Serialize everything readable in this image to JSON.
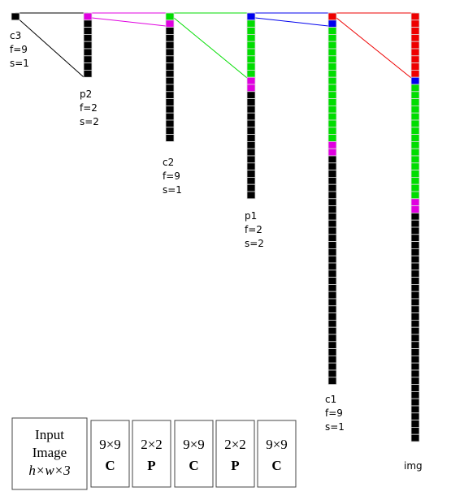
{
  "layers": [
    {
      "name": "c3",
      "lines": [
        "f=9",
        "s=1"
      ]
    },
    {
      "name": "p2",
      "lines": [
        "f=2",
        "s=2"
      ]
    },
    {
      "name": "c2",
      "lines": [
        "f=9",
        "s=1"
      ]
    },
    {
      "name": "p1",
      "lines": [
        "f=2",
        "s=2"
      ]
    },
    {
      "name": "c1",
      "lines": [
        "f=9",
        "s=1"
      ]
    },
    {
      "name": "img",
      "lines": []
    }
  ],
  "input_box": {
    "lines": [
      "Input",
      "Image",
      "h×w×3"
    ]
  },
  "ops": [
    {
      "size": "9×9",
      "op": "C"
    },
    {
      "size": "2×2",
      "op": "P"
    },
    {
      "size": "9×9",
      "op": "C"
    },
    {
      "size": "2×2",
      "op": "P"
    },
    {
      "size": "9×9",
      "op": "C"
    }
  ]
}
